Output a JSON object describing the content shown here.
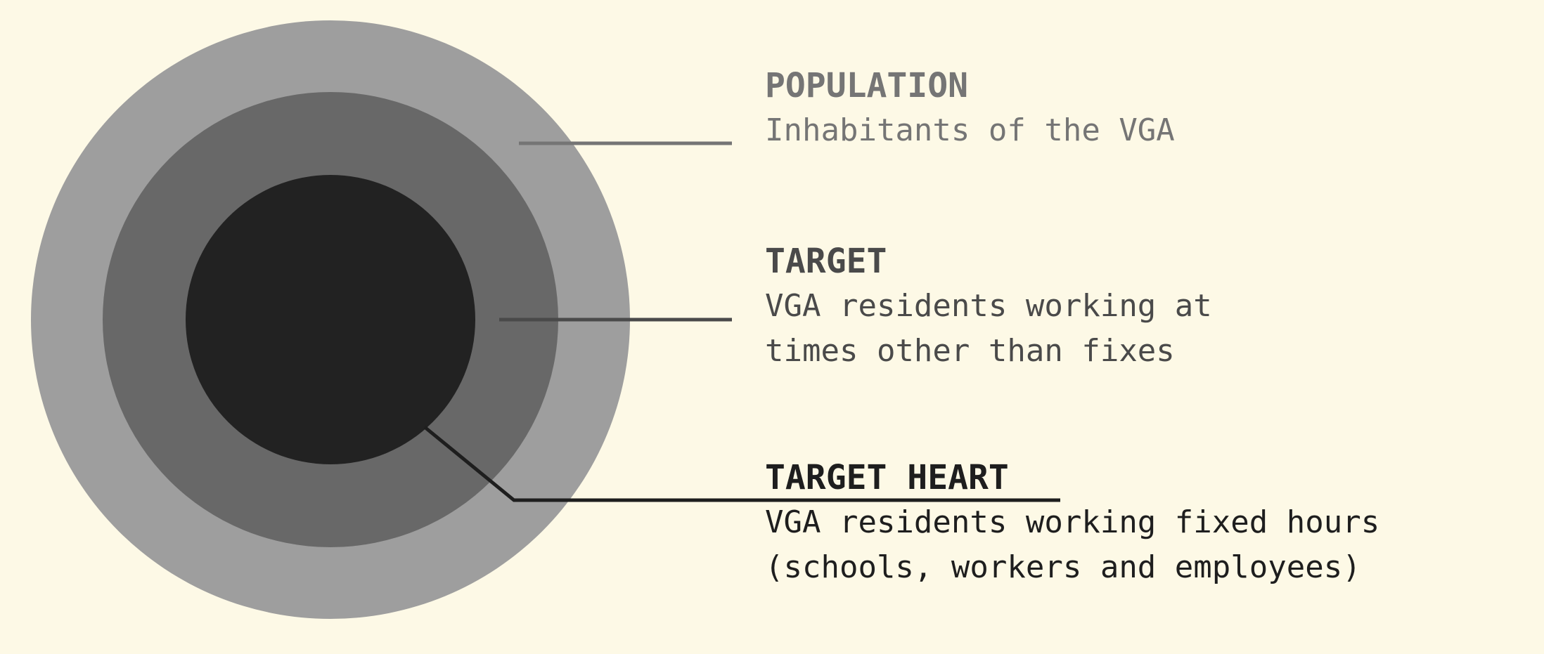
{
  "colors": {
    "background": "#fdf9e6",
    "population": "#9e9e9e",
    "target": "#686868",
    "target_heart": "#222222",
    "population_text": "#757575",
    "target_text": "#4a4a4a",
    "heart_text": "#1e1e1e"
  },
  "population": {
    "title": "POPULATION",
    "description": "Inhabitants of the VGA"
  },
  "target": {
    "title": "TARGET",
    "description": "VGA residents working at\ntimes other than fixes"
  },
  "target_heart": {
    "title": "TARGET HEART",
    "description": "VGA residents working fixed hours\n(schools, workers and employees)"
  }
}
